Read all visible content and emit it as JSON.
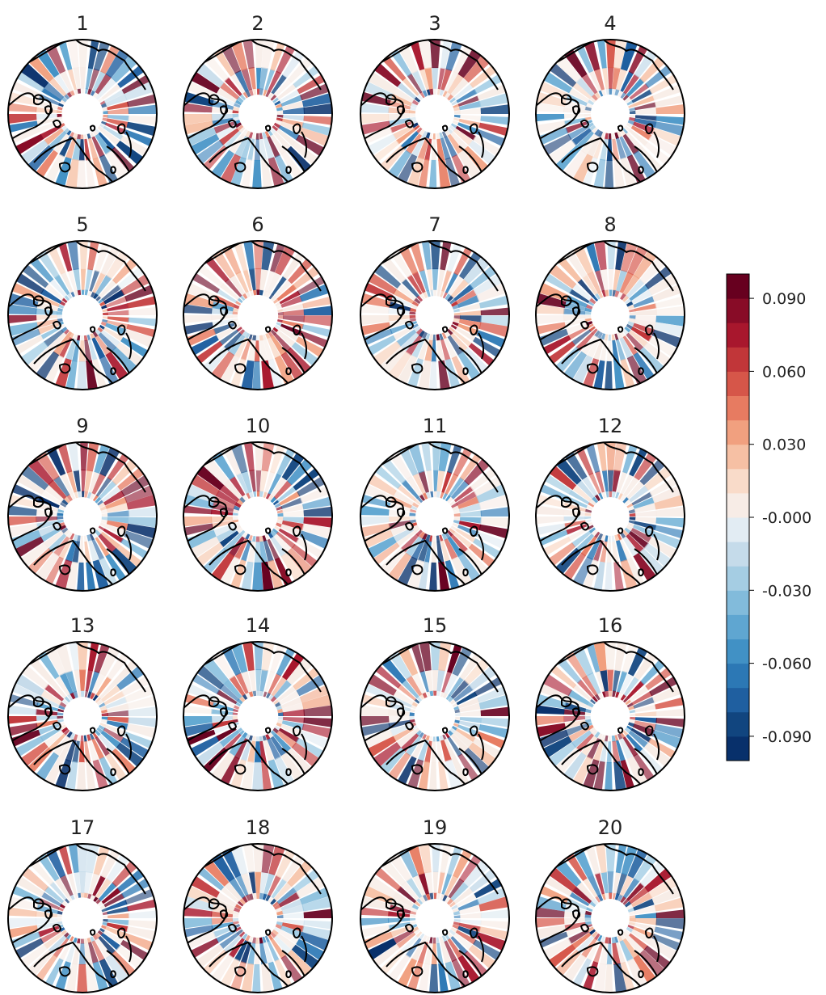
{
  "chart_data": {
    "type": "heatmap",
    "projection": "north-polar-stereographic",
    "layout": {
      "rows": 5,
      "cols": 4
    },
    "panels": [
      {
        "title": "1"
      },
      {
        "title": "2"
      },
      {
        "title": "3"
      },
      {
        "title": "4"
      },
      {
        "title": "5"
      },
      {
        "title": "6"
      },
      {
        "title": "7"
      },
      {
        "title": "8"
      },
      {
        "title": "9"
      },
      {
        "title": "10"
      },
      {
        "title": "11"
      },
      {
        "title": "12"
      },
      {
        "title": "13"
      },
      {
        "title": "14"
      },
      {
        "title": "15"
      },
      {
        "title": "16"
      },
      {
        "title": "17"
      },
      {
        "title": "18"
      },
      {
        "title": "19"
      },
      {
        "title": "20"
      }
    ],
    "colorbar": {
      "colormap": "RdBu_r",
      "vmin": -0.1,
      "vmax": 0.1,
      "levels": 20,
      "ticks": [
        {
          "value": 0.09,
          "label": "0.090"
        },
        {
          "value": 0.06,
          "label": "0.060"
        },
        {
          "value": 0.03,
          "label": "0.030"
        },
        {
          "value": 0.0,
          "label": "-0.000"
        },
        {
          "value": -0.03,
          "label": "-0.030"
        },
        {
          "value": -0.06,
          "label": "-0.060"
        },
        {
          "value": -0.09,
          "label": "-0.090"
        }
      ],
      "colors": [
        "#08306b",
        "#11457f",
        "#1f5fa0",
        "#2c78b5",
        "#4191c5",
        "#5fa6d1",
        "#82bbdb",
        "#a5cde3",
        "#c5dbea",
        "#e2ecf3",
        "#f7ece6",
        "#f9dbc9",
        "#f6c0a4",
        "#f1a07f",
        "#e77b61",
        "#d65649",
        "#c13639",
        "#a8172d",
        "#880c27",
        "#67001f"
      ]
    },
    "grid": false
  }
}
